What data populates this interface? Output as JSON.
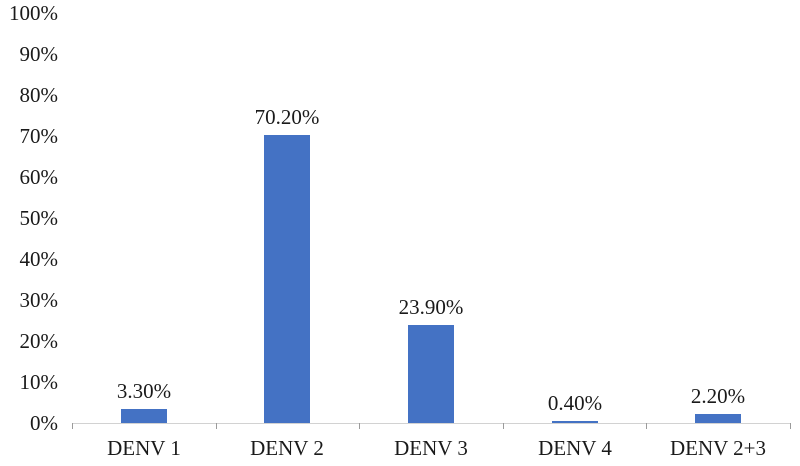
{
  "chart_data": {
    "type": "bar",
    "title": "",
    "xlabel": "",
    "ylabel": "",
    "categories": [
      "DENV 1",
      "DENV 2",
      "DENV 3",
      "DENV 4",
      "DENV 2+3"
    ],
    "values": [
      3.3,
      70.2,
      23.9,
      0.4,
      2.2
    ],
    "value_labels": [
      "3.30%",
      "70.20%",
      "23.90%",
      "0.40%",
      "2.20%"
    ],
    "y_tick_labels": [
      "0%",
      "10%",
      "20%",
      "30%",
      "40%",
      "50%",
      "60%",
      "70%",
      "80%",
      "90%",
      "100%"
    ],
    "y_tick_values": [
      0,
      10,
      20,
      30,
      40,
      50,
      60,
      70,
      80,
      90,
      100
    ],
    "ylim": [
      0,
      100
    ],
    "grid": "off",
    "legend": "none",
    "colors": {
      "bar": "#4472C4",
      "axis_line": "#d2d2d2",
      "tick": "#9b9b9b",
      "text": "#1a1a1a"
    }
  }
}
